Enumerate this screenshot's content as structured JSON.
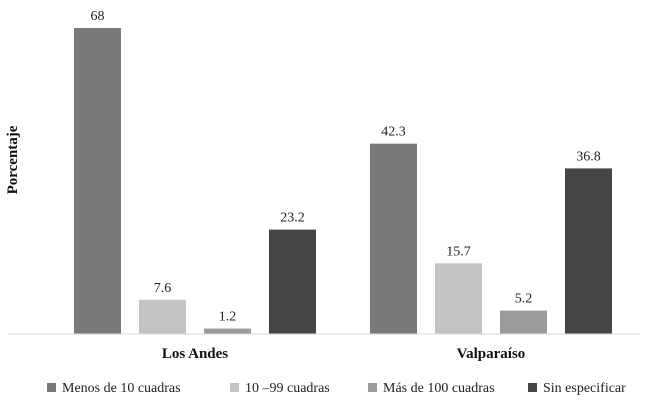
{
  "chart_data": {
    "type": "bar",
    "categories": [
      "Los Andes",
      "Valparaíso"
    ],
    "series": [
      {
        "name": "Menos de 10 cuadras",
        "values": [
          68,
          42.3
        ],
        "labels": [
          "68",
          "42.3"
        ],
        "color": "#7a7a7a"
      },
      {
        "name": "10 –99 cuadras",
        "values": [
          7.6,
          15.7
        ],
        "labels": [
          "7.6",
          "15.7"
        ],
        "color": "#c4c4c4"
      },
      {
        "name": "Más de 100 cuadras",
        "values": [
          1.2,
          5.2
        ],
        "labels": [
          "1.2",
          "5.2"
        ],
        "color": "#9a9a9a"
      },
      {
        "name": "Sin especificar",
        "values": [
          23.2,
          36.8
        ],
        "labels": [
          "23.2",
          "36.8"
        ],
        "color": "#454545"
      }
    ],
    "title": "",
    "xlabel": "",
    "ylabel": "Porcentaje",
    "ylim": [
      0,
      68
    ],
    "grid": false,
    "legend_position": "bottom"
  }
}
